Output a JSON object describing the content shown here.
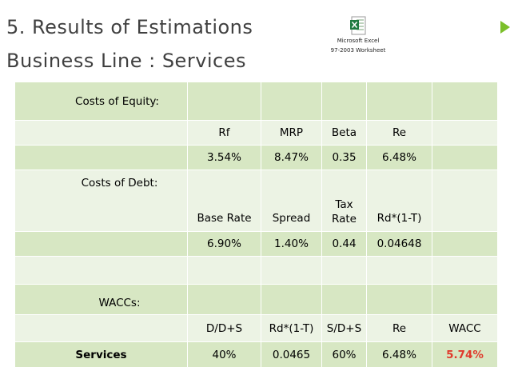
{
  "slide": {
    "title_line1": "5. Results of Estimations",
    "title_line2": "Business Line : Services"
  },
  "embedded_object": {
    "icon": "excel-file-icon",
    "caption_line1": "Microsoft Excel",
    "caption_line2": "97-2003 Worksheet"
  },
  "colors": {
    "title": "#404040",
    "row_dark": "#d7e7c3",
    "row_light": "#ecf3e4",
    "accent_triangle": "#7bbf2a",
    "wacc_value": "#e03a2c"
  },
  "equity": {
    "label": "Costs of Equity:",
    "headers": [
      "Rf",
      "MRP",
      "Beta",
      "Re"
    ],
    "values": [
      "3.54%",
      "8.47%",
      "0.35",
      "6.48%"
    ]
  },
  "debt": {
    "label": "Costs of Debt:",
    "headers": [
      "Base Rate",
      "Spread",
      "Tax Rate",
      "Rd*(1-T)"
    ],
    "values": [
      "6.90%",
      "1.40%",
      "0.44",
      "0.04648"
    ]
  },
  "wacc": {
    "label": "WACCs:",
    "headers": [
      "D/D+S",
      "Rd*(1-T)",
      "S/D+S",
      "Re",
      "WACC"
    ],
    "row_label": "Services",
    "values": [
      "40%",
      "0.0465",
      "60%",
      "6.48%",
      "5.74%"
    ]
  }
}
